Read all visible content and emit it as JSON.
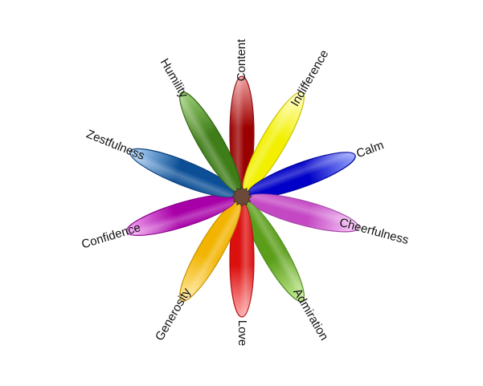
{
  "diagram": {
    "petals": [
      {
        "label": "Content",
        "angle": 0,
        "color_light": "#f4a3a3",
        "color_dark": "#9b0000",
        "outline": "#8a1010"
      },
      {
        "label": "Indifference",
        "angle": 30,
        "color_light": "#ffffcc",
        "color_dark": "#f2f000",
        "outline": "#c9c200"
      },
      {
        "label": "Calm",
        "angle": 70,
        "color_light": "#9aa8ff",
        "color_dark": "#0000c8",
        "outline": "#000099"
      },
      {
        "label": "Cheerfulness",
        "angle": 105,
        "color_light": "#fbd3fb",
        "color_dark": "#c447c4",
        "outline": "#a64aa6"
      },
      {
        "label": "Admiration",
        "angle": 150,
        "color_light": "#c9f09a",
        "color_dark": "#5b9e1a",
        "outline": "#4f8a1c"
      },
      {
        "label": "Love",
        "angle": 180,
        "color_light": "#ffaaaa",
        "color_dark": "#dd1010",
        "outline": "#b01010"
      },
      {
        "label": "Generosity",
        "angle": 210,
        "color_light": "#ffe9a0",
        "color_dark": "#f2b400",
        "outline": "#c99000"
      },
      {
        "label": "Confidence",
        "angle": 253,
        "color_light": "#f7b0f7",
        "color_dark": "#a800a8",
        "outline": "#8a008a"
      },
      {
        "label": "Zestfulness",
        "angle": 292,
        "color_light": "#b9dcff",
        "color_dark": "#0c4f96",
        "outline": "#0b3f7a"
      },
      {
        "label": "Humility",
        "angle": 330,
        "color_light": "#9fd07a",
        "color_dark": "#3f7d18",
        "outline": "#2f6410"
      }
    ],
    "center_color": "#6b4a3a"
  }
}
